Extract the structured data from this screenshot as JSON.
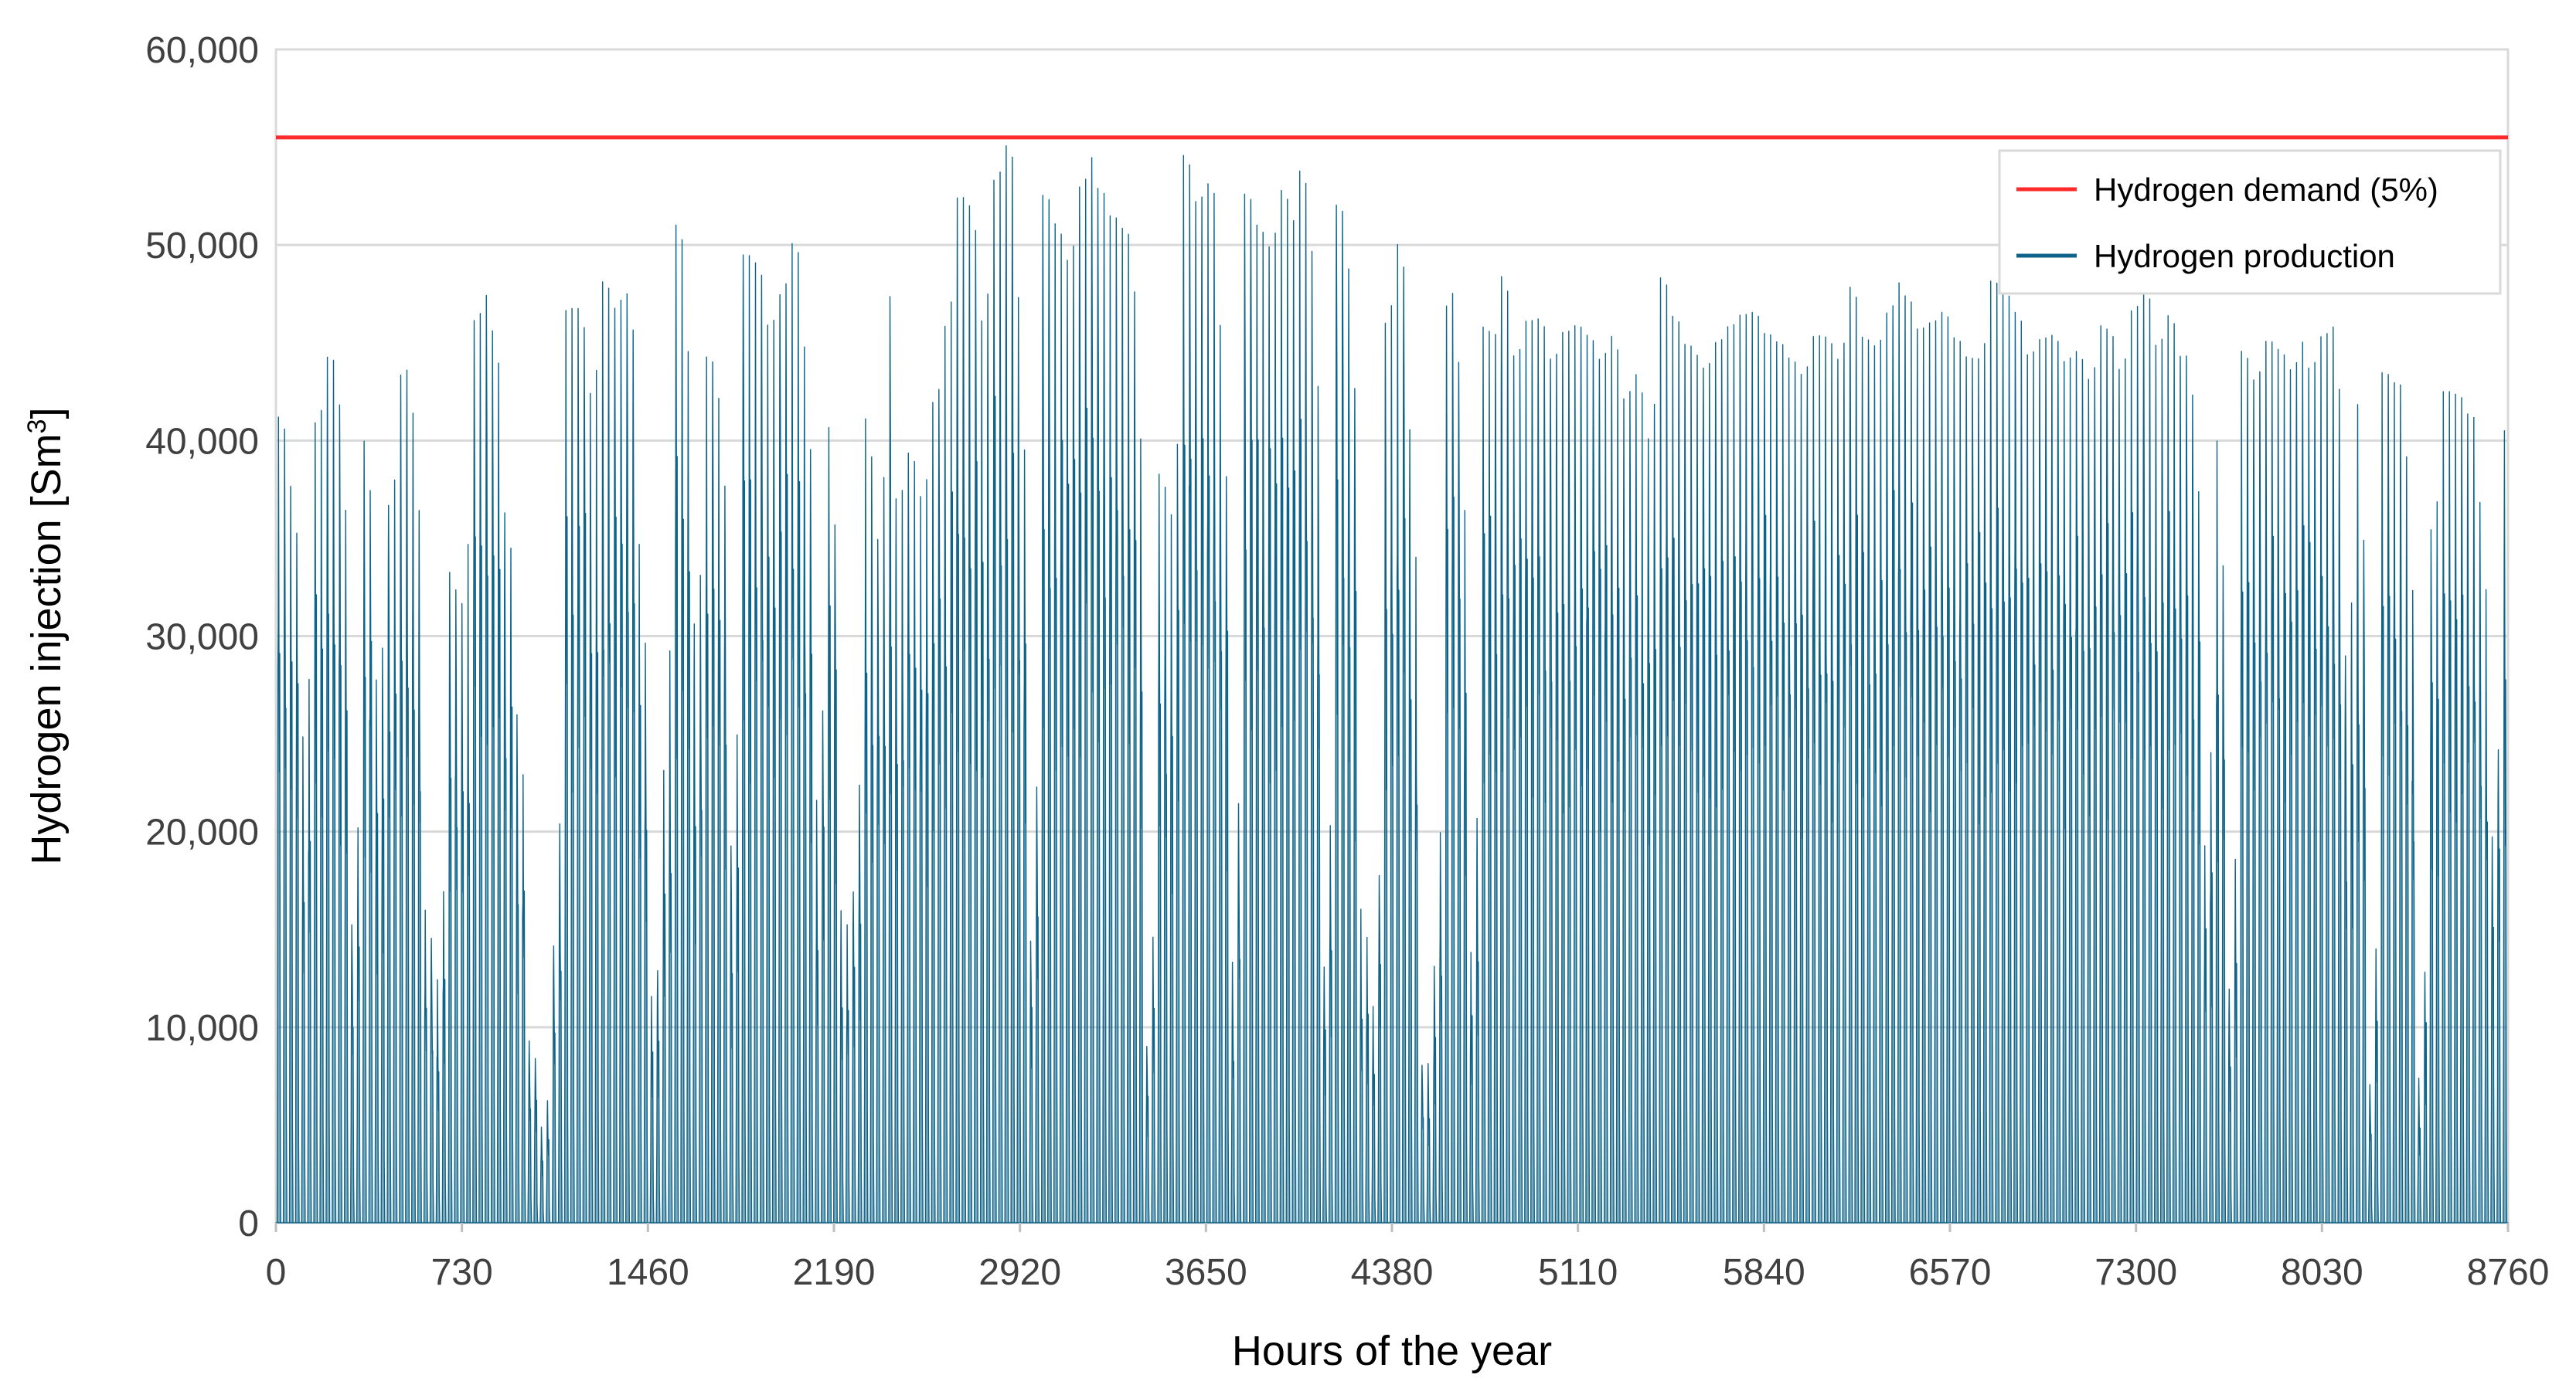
{
  "chart_data": {
    "type": "line",
    "title": "",
    "xlabel": "Hours of the year",
    "ylabel": "Hydrogen injection [Sm",
    "ylabel_superscript": "3",
    "ylabel_close": "]",
    "xlim": [
      0,
      8760
    ],
    "ylim": [
      0,
      60000
    ],
    "x_ticks": [
      "0",
      "730",
      "1460",
      "2190",
      "2920",
      "3650",
      "4380",
      "5110",
      "5840",
      "6570",
      "7300",
      "8030",
      "8760"
    ],
    "y_ticks": [
      "0",
      "10,000",
      "20,000",
      "30,000",
      "40,000",
      "50,000",
      "60,000"
    ],
    "grid": true,
    "legend_position": "top-right",
    "series": [
      {
        "name": "Hydrogen demand (5%)",
        "style": "line",
        "color": "#ff2a2a",
        "x": [
          0,
          8760
        ],
        "values": [
          55500,
          55500
        ]
      },
      {
        "name": "Hydrogen production",
        "style": "daily-peak-profile",
        "color": "#0d6388",
        "peak_day_interval_hours": 24,
        "daily_peaks": [
          41200,
          37800,
          24500,
          40800,
          44300,
          43400,
          13500,
          41000,
          27000,
          36000,
          43200,
          44600,
          17000,
          9000,
          34000,
          29000,
          45800,
          47800,
          45700,
          36500,
          26500,
          9500,
          4500,
          12000,
          46600,
          47200,
          41800,
          48300,
          46500,
          48800,
          38500,
          10500,
          17800,
          51700,
          47600,
          30500,
          44300,
          42900,
          18000,
          49500,
          49300,
          45800,
          47200,
          50300,
          47800,
          18700,
          44100,
          16500,
          12500,
          42800,
          32000,
          49600,
          37000,
          39400,
          37000,
          41800,
          45500,
          52400,
          52500,
          45500,
          53100,
          55400,
          52200,
          9000,
          52700,
          51500,
          48600,
          52600,
          54800,
          52900,
          51500,
          50900,
          49200,
          7500,
          38500,
          34800,
          54800,
          52100,
          53400,
          50700,
          7800,
          52800,
          51300,
          49300,
          53200,
          50700,
          53800,
          50300,
          12000,
          52100,
          50400,
          16500,
          8500,
          45600,
          50600,
          44200,
          8000,
          8500,
          46400,
          50000,
          8000,
          46000,
          44800,
          48400,
          44300,
          46100,
          46300,
          44100,
          45500,
          45900,
          45500,
          44000,
          45700,
          41900,
          44000,
          38800,
          48600,
          46600,
          45000,
          44500,
          43700,
          45000,
          45800,
          46400,
          46600,
          45500,
          45100,
          44300,
          43200,
          45300,
          45500,
          43600,
          48200,
          45400,
          44600,
          46200,
          48200,
          47400,
          45700,
          46000,
          46600,
          45300,
          44300,
          43900,
          48200,
          47600,
          46800,
          44300,
          45100,
          45600,
          43900,
          44900,
          42600,
          45900,
          45700,
          43600,
          46600,
          47900,
          44800,
          46500,
          44300,
          44400,
          17000,
          43400,
          8000,
          44800,
          42800,
          45100,
          44900,
          43300,
          45300,
          43700,
          45300,
          46200,
          28500,
          43500,
          5000,
          43500,
          43000,
          42400,
          4500,
          34600,
          42500,
          42500,
          41500,
          40500,
          15800,
          40500
        ]
      }
    ]
  }
}
